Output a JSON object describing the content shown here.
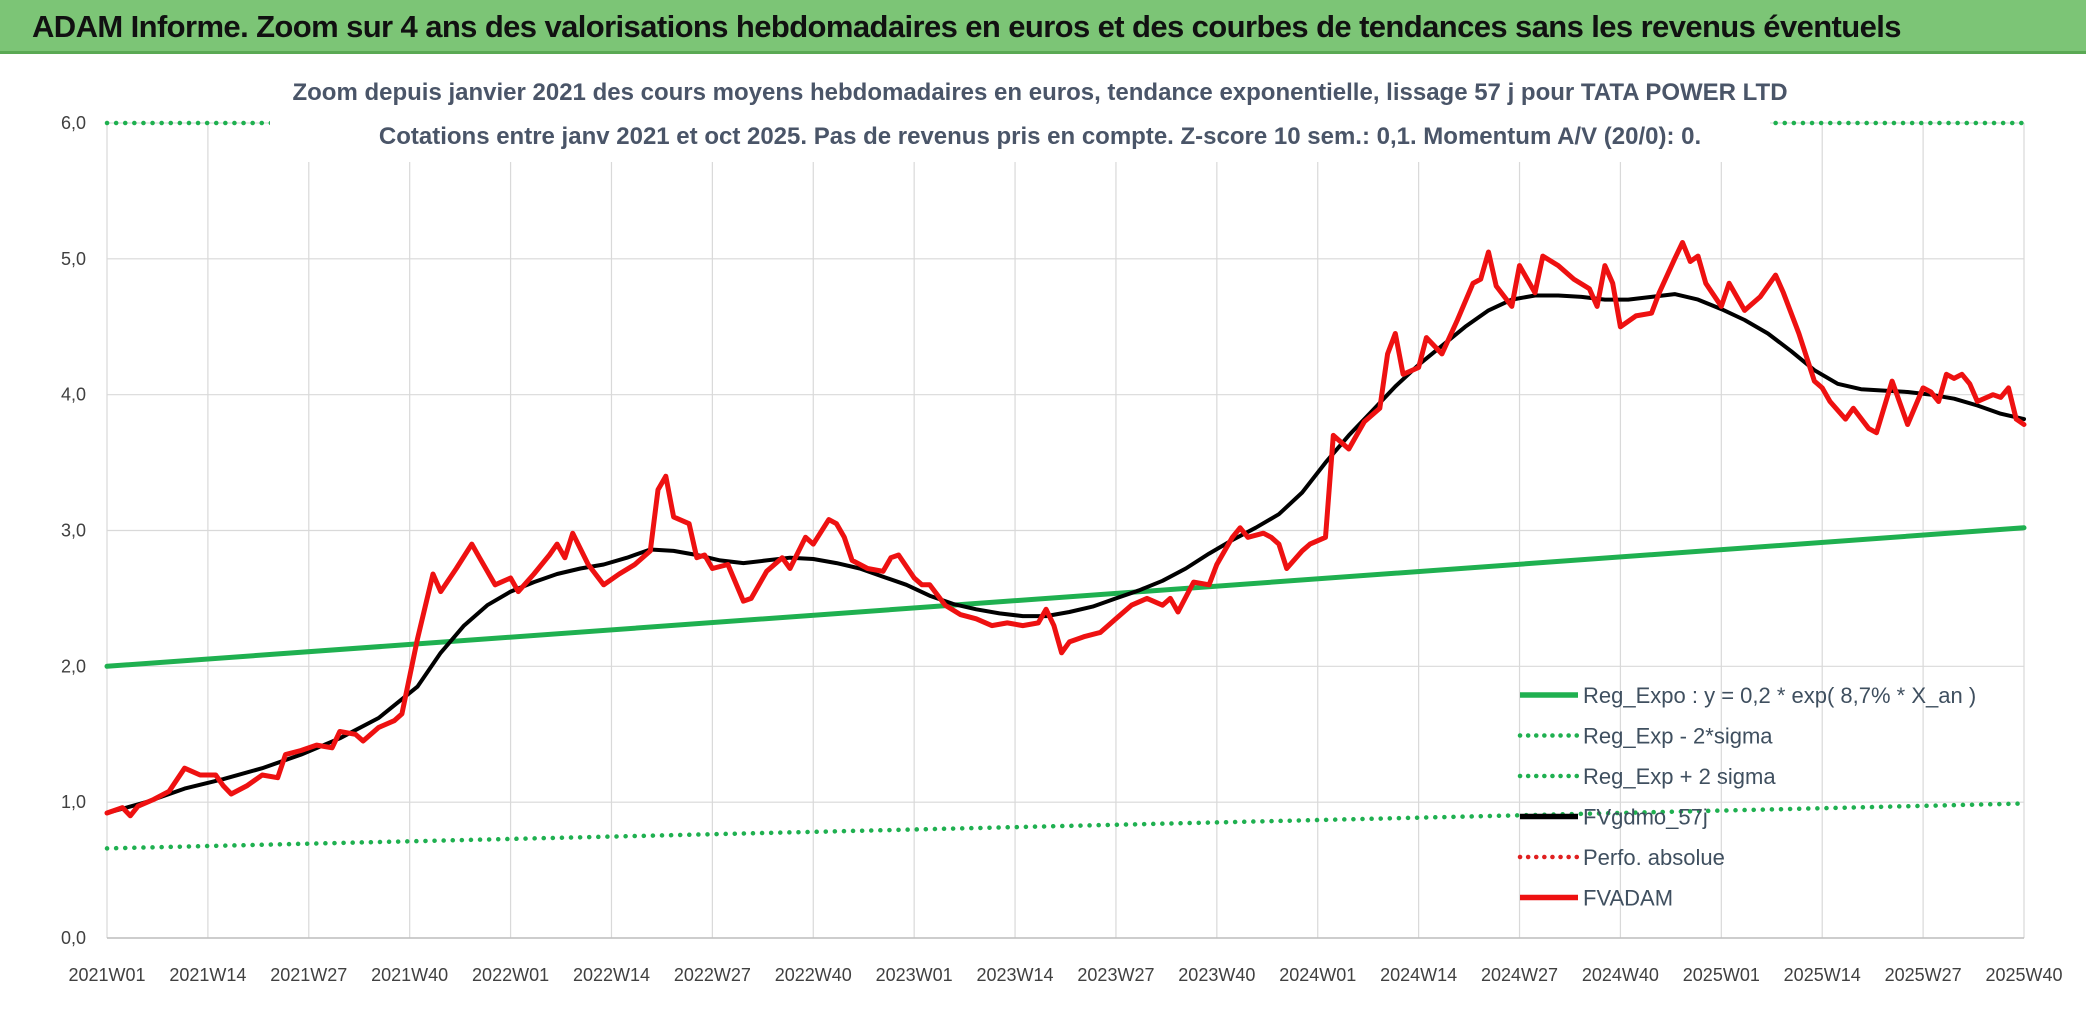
{
  "header": {
    "title": "ADAM Informe. Zoom sur 4 ans des valorisations hebdomadaires en euros et des courbes de tendances sans les revenus éventuels"
  },
  "chart_data": {
    "type": "line",
    "title": "Zoom depuis janvier 2021 des cours moyens hebdomadaires en euros, tendance exponentielle, lissage 57 j pour TATA POWER LTD",
    "subtitle": "Cotations entre janv 2021 et oct 2025. Pas de revenus pris en compte. Z-score 10 sem.: 0,1. Momentum A/V (20/0): 0.",
    "xlabel": "",
    "ylabel": "",
    "ylim": [
      0,
      6
    ],
    "yticks": [
      "0,0",
      "1,0",
      "2,0",
      "3,0",
      "4,0",
      "5,0",
      "6,0"
    ],
    "x_ticks": [
      "2021W01",
      "2021W14",
      "2021W27",
      "2021W40",
      "2022W01",
      "2022W14",
      "2022W27",
      "2022W40",
      "2023W01",
      "2023W14",
      "2023W27",
      "2023W40",
      "2024W01",
      "2024W14",
      "2024W27",
      "2024W40",
      "2025W01",
      "2025W14",
      "2025W27",
      "2025W40"
    ],
    "x_range_weeks": [
      0,
      247
    ],
    "grid": true,
    "legend_position": "bottom-right",
    "series": [
      {
        "name": "Reg_Expo : y = 0,2 * exp( 8,7% *  X_an )",
        "style": "solid",
        "color": "#1fb050",
        "points": [
          [
            0,
            2.0
          ],
          [
            247,
            3.02
          ]
        ]
      },
      {
        "name": "Reg_Exp - 2*sigma",
        "style": "dotted",
        "color": "#1fb050",
        "points": [
          [
            0,
            0.66
          ],
          [
            247,
            0.99
          ]
        ]
      },
      {
        "name": "Reg_Exp + 2 sigma",
        "style": "dotted",
        "color": "#1fb050",
        "points": [
          [
            0,
            6.0
          ],
          [
            26,
            6.0
          ]
        ],
        "points_right": [
          [
            215,
            6.0
          ],
          [
            247,
            6.0
          ]
        ]
      },
      {
        "name": "FVgdmo_57j",
        "style": "solid",
        "color": "#000000",
        "points": [
          [
            0,
            0.92
          ],
          [
            5,
            1.0
          ],
          [
            10,
            1.1
          ],
          [
            15,
            1.17
          ],
          [
            20,
            1.25
          ],
          [
            25,
            1.35
          ],
          [
            30,
            1.47
          ],
          [
            35,
            1.62
          ],
          [
            40,
            1.85
          ],
          [
            43,
            2.1
          ],
          [
            46,
            2.3
          ],
          [
            49,
            2.45
          ],
          [
            52,
            2.55
          ],
          [
            55,
            2.62
          ],
          [
            58,
            2.68
          ],
          [
            61,
            2.72
          ],
          [
            64,
            2.75
          ],
          [
            67,
            2.8
          ],
          [
            70,
            2.86
          ],
          [
            73,
            2.85
          ],
          [
            76,
            2.82
          ],
          [
            79,
            2.78
          ],
          [
            82,
            2.76
          ],
          [
            85,
            2.78
          ],
          [
            88,
            2.8
          ],
          [
            91,
            2.79
          ],
          [
            94,
            2.76
          ],
          [
            97,
            2.72
          ],
          [
            100,
            2.66
          ],
          [
            103,
            2.6
          ],
          [
            106,
            2.52
          ],
          [
            109,
            2.46
          ],
          [
            112,
            2.42
          ],
          [
            115,
            2.39
          ],
          [
            118,
            2.37
          ],
          [
            121,
            2.37
          ],
          [
            124,
            2.4
          ],
          [
            127,
            2.44
          ],
          [
            130,
            2.5
          ],
          [
            133,
            2.56
          ],
          [
            136,
            2.63
          ],
          [
            139,
            2.72
          ],
          [
            142,
            2.83
          ],
          [
            145,
            2.93
          ],
          [
            148,
            3.02
          ],
          [
            151,
            3.12
          ],
          [
            154,
            3.28
          ],
          [
            157,
            3.5
          ],
          [
            160,
            3.7
          ],
          [
            163,
            3.88
          ],
          [
            166,
            4.06
          ],
          [
            169,
            4.22
          ],
          [
            172,
            4.36
          ],
          [
            175,
            4.5
          ],
          [
            178,
            4.62
          ],
          [
            181,
            4.7
          ],
          [
            184,
            4.73
          ],
          [
            187,
            4.73
          ],
          [
            190,
            4.72
          ],
          [
            193,
            4.7
          ],
          [
            196,
            4.7
          ],
          [
            199,
            4.72
          ],
          [
            202,
            4.74
          ],
          [
            205,
            4.7
          ],
          [
            208,
            4.63
          ],
          [
            211,
            4.55
          ],
          [
            214,
            4.45
          ],
          [
            217,
            4.32
          ],
          [
            220,
            4.18
          ],
          [
            223,
            4.08
          ],
          [
            226,
            4.04
          ],
          [
            229,
            4.03
          ],
          [
            232,
            4.02
          ],
          [
            235,
            4.0
          ],
          [
            238,
            3.97
          ],
          [
            241,
            3.92
          ],
          [
            244,
            3.86
          ],
          [
            247,
            3.82
          ]
        ]
      },
      {
        "name": "Perfo. absolue",
        "style": "dotted",
        "color": "#e02020",
        "points": []
      },
      {
        "name": "FVADAM",
        "style": "solid",
        "color": "#ee1111",
        "points": [
          [
            0,
            0.92
          ],
          [
            2,
            0.96
          ],
          [
            3,
            0.9
          ],
          [
            4,
            0.97
          ],
          [
            6,
            1.02
          ],
          [
            8,
            1.08
          ],
          [
            10,
            1.25
          ],
          [
            12,
            1.2
          ],
          [
            14,
            1.2
          ],
          [
            15,
            1.12
          ],
          [
            16,
            1.06
          ],
          [
            18,
            1.12
          ],
          [
            20,
            1.2
          ],
          [
            22,
            1.18
          ],
          [
            23,
            1.35
          ],
          [
            25,
            1.38
          ],
          [
            27,
            1.42
          ],
          [
            29,
            1.4
          ],
          [
            30,
            1.52
          ],
          [
            32,
            1.5
          ],
          [
            33,
            1.45
          ],
          [
            35,
            1.55
          ],
          [
            37,
            1.6
          ],
          [
            38,
            1.65
          ],
          [
            40,
            2.2
          ],
          [
            42,
            2.68
          ],
          [
            43,
            2.55
          ],
          [
            45,
            2.72
          ],
          [
            47,
            2.9
          ],
          [
            48,
            2.8
          ],
          [
            50,
            2.6
          ],
          [
            52,
            2.65
          ],
          [
            53,
            2.55
          ],
          [
            55,
            2.68
          ],
          [
            57,
            2.82
          ],
          [
            58,
            2.9
          ],
          [
            59,
            2.8
          ],
          [
            60,
            2.98
          ],
          [
            62,
            2.75
          ],
          [
            64,
            2.6
          ],
          [
            66,
            2.68
          ],
          [
            68,
            2.75
          ],
          [
            70,
            2.85
          ],
          [
            71,
            3.3
          ],
          [
            72,
            3.4
          ],
          [
            73,
            3.1
          ],
          [
            75,
            3.05
          ],
          [
            76,
            2.8
          ],
          [
            77,
            2.82
          ],
          [
            78,
            2.72
          ],
          [
            80,
            2.75
          ],
          [
            82,
            2.48
          ],
          [
            83,
            2.5
          ],
          [
            85,
            2.7
          ],
          [
            87,
            2.8
          ],
          [
            88,
            2.72
          ],
          [
            90,
            2.95
          ],
          [
            91,
            2.9
          ],
          [
            93,
            3.08
          ],
          [
            94,
            3.05
          ],
          [
            95,
            2.95
          ],
          [
            96,
            2.78
          ],
          [
            98,
            2.72
          ],
          [
            100,
            2.7
          ],
          [
            101,
            2.8
          ],
          [
            102,
            2.82
          ],
          [
            104,
            2.65
          ],
          [
            105,
            2.6
          ],
          [
            106,
            2.6
          ],
          [
            108,
            2.45
          ],
          [
            110,
            2.38
          ],
          [
            112,
            2.35
          ],
          [
            114,
            2.3
          ],
          [
            116,
            2.32
          ],
          [
            118,
            2.3
          ],
          [
            120,
            2.32
          ],
          [
            121,
            2.42
          ],
          [
            122,
            2.3
          ],
          [
            123,
            2.1
          ],
          [
            124,
            2.18
          ],
          [
            126,
            2.22
          ],
          [
            128,
            2.25
          ],
          [
            130,
            2.35
          ],
          [
            132,
            2.45
          ],
          [
            134,
            2.5
          ],
          [
            136,
            2.45
          ],
          [
            137,
            2.5
          ],
          [
            138,
            2.4
          ],
          [
            140,
            2.62
          ],
          [
            142,
            2.6
          ],
          [
            143,
            2.75
          ],
          [
            145,
            2.95
          ],
          [
            146,
            3.02
          ],
          [
            147,
            2.95
          ],
          [
            149,
            2.98
          ],
          [
            150,
            2.95
          ],
          [
            151,
            2.9
          ],
          [
            152,
            2.72
          ],
          [
            154,
            2.85
          ],
          [
            155,
            2.9
          ],
          [
            157,
            2.95
          ],
          [
            158,
            3.7
          ],
          [
            160,
            3.6
          ],
          [
            161,
            3.7
          ],
          [
            162,
            3.8
          ],
          [
            164,
            3.9
          ],
          [
            165,
            4.3
          ],
          [
            166,
            4.45
          ],
          [
            167,
            4.15
          ],
          [
            169,
            4.2
          ],
          [
            170,
            4.42
          ],
          [
            172,
            4.3
          ],
          [
            174,
            4.55
          ],
          [
            176,
            4.82
          ],
          [
            177,
            4.85
          ],
          [
            178,
            5.05
          ],
          [
            179,
            4.8
          ],
          [
            181,
            4.65
          ],
          [
            182,
            4.95
          ],
          [
            184,
            4.75
          ],
          [
            185,
            5.02
          ],
          [
            187,
            4.95
          ],
          [
            189,
            4.85
          ],
          [
            191,
            4.78
          ],
          [
            192,
            4.65
          ],
          [
            193,
            4.95
          ],
          [
            194,
            4.82
          ],
          [
            195,
            4.5
          ],
          [
            197,
            4.58
          ],
          [
            199,
            4.6
          ],
          [
            200,
            4.75
          ],
          [
            202,
            5.0
          ],
          [
            203,
            5.12
          ],
          [
            204,
            4.98
          ],
          [
            205,
            5.02
          ],
          [
            206,
            4.82
          ],
          [
            208,
            4.65
          ],
          [
            209,
            4.82
          ],
          [
            211,
            4.62
          ],
          [
            213,
            4.72
          ],
          [
            215,
            4.88
          ],
          [
            216,
            4.75
          ],
          [
            218,
            4.45
          ],
          [
            220,
            4.1
          ],
          [
            221,
            4.05
          ],
          [
            222,
            3.95
          ],
          [
            224,
            3.82
          ],
          [
            225,
            3.9
          ],
          [
            227,
            3.75
          ],
          [
            228,
            3.72
          ],
          [
            230,
            4.1
          ],
          [
            232,
            3.78
          ],
          [
            234,
            4.05
          ],
          [
            235,
            4.02
          ],
          [
            236,
            3.95
          ],
          [
            237,
            4.15
          ],
          [
            238,
            4.12
          ],
          [
            239,
            4.15
          ],
          [
            240,
            4.08
          ],
          [
            241,
            3.95
          ],
          [
            243,
            4.0
          ],
          [
            244,
            3.98
          ],
          [
            245,
            4.05
          ],
          [
            246,
            3.82
          ],
          [
            247,
            3.78
          ]
        ]
      }
    ]
  }
}
